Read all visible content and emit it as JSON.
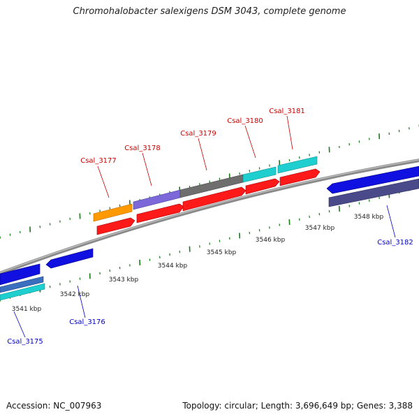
{
  "title": "Chromohalobacter salexigens DSM 3043, complete genome",
  "footer": {
    "accession": "Accession: NC_007963",
    "summary": "Topology: circular; Length: 3,696,649 bp; Genes: 3,388"
  },
  "colors": {
    "forward_cds": "#ff0000",
    "reverse_cds": "#0000ff",
    "cyan_feature": "#1fcfcf",
    "orange_feature": "#ff9900",
    "lavender_feature": "#7c68d8",
    "gray_feature": "#6e6e6e",
    "slate_feature": "#4a4a8a",
    "forward_label": "#cc0000",
    "reverse_label": "#0000cc",
    "tick": "#1a7a1a",
    "backbone": "#8a8a8a"
  },
  "scale_labels": [
    "3541 kbp",
    "3542 kbp",
    "3543 kbp",
    "3544 kbp",
    "3545 kbp",
    "3546 kbp",
    "3547 kbp",
    "3548 kbp"
  ],
  "gene_labels": {
    "forward": [
      "Csal_3177",
      "Csal_3178",
      "Csal_3179",
      "Csal_3180",
      "Csal_3181"
    ],
    "reverse": [
      "Csal_3175",
      "Csal_3176",
      "Csal_3182"
    ]
  }
}
